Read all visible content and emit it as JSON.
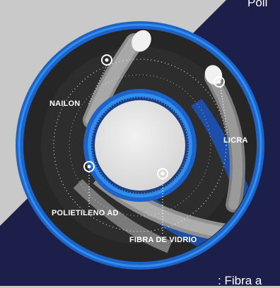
{
  "corner_text": {
    "top": "Poli",
    "bottom": ": Fibra a"
  },
  "fibers": {
    "nailon": "NAILON",
    "licra": "LICRA",
    "polietileno": "POLIETILENO AD",
    "fibra_vidrio": "FIBRA DE VIDRIO"
  },
  "colors": {
    "background": "#c9c9c9",
    "navy": "#1b1f4a",
    "ring_blue": "#1e63c7",
    "bright_blue": "#2f8ff0",
    "disc_dark": "#262626"
  }
}
